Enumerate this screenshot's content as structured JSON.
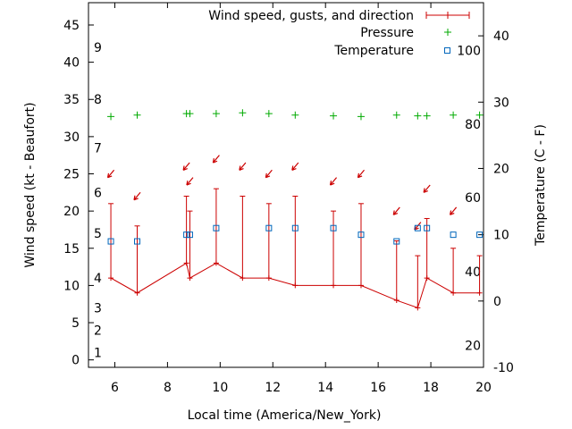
{
  "chart_data": {
    "type": "line",
    "xlabel": "Local time (America/New_York)",
    "ylabel_left": "Wind speed (kt - Beaufort)",
    "ylabel_right": "Temperature (C - F)",
    "xlim": [
      5,
      20
    ],
    "ylim_left": [
      -1,
      48
    ],
    "ylim_right": [
      -10,
      45
    ],
    "grid": false,
    "legend_placement": "top-right",
    "x_ticks": [
      "6",
      "8",
      "10",
      "12",
      "14",
      "16",
      "18",
      "20"
    ],
    "y_ticks_left": [
      "0",
      "5",
      "10",
      "15",
      "20",
      "25",
      "30",
      "35",
      "40",
      "45"
    ],
    "y_ticks_right": [
      "-10",
      "0",
      "10",
      "20",
      "30",
      "40"
    ],
    "beaufort_labels": [
      {
        "label": "1",
        "y": 1
      },
      {
        "label": "2",
        "y": 4
      },
      {
        "label": "3",
        "y": 7
      },
      {
        "label": "4",
        "y": 11
      },
      {
        "label": "5",
        "y": 17
      },
      {
        "label": "6",
        "y": 22.5
      },
      {
        "label": "7",
        "y": 28.5
      },
      {
        "label": "8",
        "y": 35
      },
      {
        "label": "9",
        "y": 42
      }
    ],
    "fahrenheit_labels": [
      {
        "label": "20",
        "y": -6.7
      },
      {
        "label": "40",
        "y": 4.4
      },
      {
        "label": "60",
        "y": 15.6
      },
      {
        "label": "80",
        "y": 26.7
      },
      {
        "label": "100",
        "y": 37.8
      }
    ],
    "series": [
      {
        "name": "Wind speed, gusts, and direction",
        "color": "#cc0000",
        "points": [
          {
            "x": 5.85,
            "speed": 11,
            "gust": 21
          },
          {
            "x": 6.85,
            "speed": 9,
            "gust": 18
          },
          {
            "x": 8.72,
            "speed": 13,
            "gust": 22
          },
          {
            "x": 8.85,
            "speed": 11,
            "gust": 20
          },
          {
            "x": 9.85,
            "speed": 13,
            "gust": 23
          },
          {
            "x": 10.85,
            "speed": 11,
            "gust": 22
          },
          {
            "x": 11.85,
            "speed": 11,
            "gust": 21
          },
          {
            "x": 12.85,
            "speed": 10,
            "gust": 22
          },
          {
            "x": 14.3,
            "speed": 10,
            "gust": 20
          },
          {
            "x": 15.35,
            "speed": 10,
            "gust": 21
          },
          {
            "x": 16.7,
            "speed": 8,
            "gust": 16
          },
          {
            "x": 17.5,
            "speed": 7,
            "gust": 14
          },
          {
            "x": 17.85,
            "speed": 11,
            "gust": 19
          },
          {
            "x": 18.85,
            "speed": 9,
            "gust": 15
          },
          {
            "x": 19.85,
            "speed": 9,
            "gust": 14
          }
        ],
        "direction_arrows": [
          {
            "x": 5.85,
            "y": 25,
            "dir": 230
          },
          {
            "x": 6.85,
            "y": 22,
            "dir": 230
          },
          {
            "x": 8.72,
            "y": 26,
            "dir": 230
          },
          {
            "x": 8.85,
            "y": 24,
            "dir": 230
          },
          {
            "x": 9.85,
            "y": 27,
            "dir": 230
          },
          {
            "x": 10.85,
            "y": 26,
            "dir": 230
          },
          {
            "x": 11.85,
            "y": 25,
            "dir": 230
          },
          {
            "x": 12.85,
            "y": 26,
            "dir": 230
          },
          {
            "x": 14.3,
            "y": 24,
            "dir": 230
          },
          {
            "x": 15.35,
            "y": 25,
            "dir": 230
          },
          {
            "x": 16.7,
            "y": 20,
            "dir": 230
          },
          {
            "x": 17.5,
            "y": 18,
            "dir": 230
          },
          {
            "x": 17.85,
            "y": 23,
            "dir": 230
          },
          {
            "x": 18.85,
            "y": 20,
            "dir": 230
          }
        ]
      },
      {
        "name": "Pressure",
        "color": "#00aa00",
        "points": [
          {
            "x": 5.85,
            "y": 32.7
          },
          {
            "x": 6.85,
            "y": 32.9
          },
          {
            "x": 8.72,
            "y": 33.1
          },
          {
            "x": 8.85,
            "y": 33.1
          },
          {
            "x": 9.85,
            "y": 33.1
          },
          {
            "x": 10.85,
            "y": 33.2
          },
          {
            "x": 11.85,
            "y": 33.1
          },
          {
            "x": 12.85,
            "y": 32.9
          },
          {
            "x": 14.3,
            "y": 32.8
          },
          {
            "x": 15.35,
            "y": 32.7
          },
          {
            "x": 16.7,
            "y": 32.9
          },
          {
            "x": 17.5,
            "y": 32.8
          },
          {
            "x": 17.85,
            "y": 32.8
          },
          {
            "x": 18.85,
            "y": 32.9
          },
          {
            "x": 19.85,
            "y": 32.9
          }
        ]
      },
      {
        "name": "Temperature",
        "color": "#0066bb",
        "points": [
          {
            "x": 5.85,
            "y": 9
          },
          {
            "x": 6.85,
            "y": 9
          },
          {
            "x": 8.72,
            "y": 10
          },
          {
            "x": 8.85,
            "y": 10
          },
          {
            "x": 9.85,
            "y": 11
          },
          {
            "x": 11.85,
            "y": 11
          },
          {
            "x": 12.85,
            "y": 11
          },
          {
            "x": 14.3,
            "y": 11
          },
          {
            "x": 15.35,
            "y": 10
          },
          {
            "x": 16.7,
            "y": 9
          },
          {
            "x": 17.5,
            "y": 11
          },
          {
            "x": 17.85,
            "y": 11
          },
          {
            "x": 18.85,
            "y": 10
          },
          {
            "x": 19.85,
            "y": 10
          }
        ]
      }
    ]
  }
}
